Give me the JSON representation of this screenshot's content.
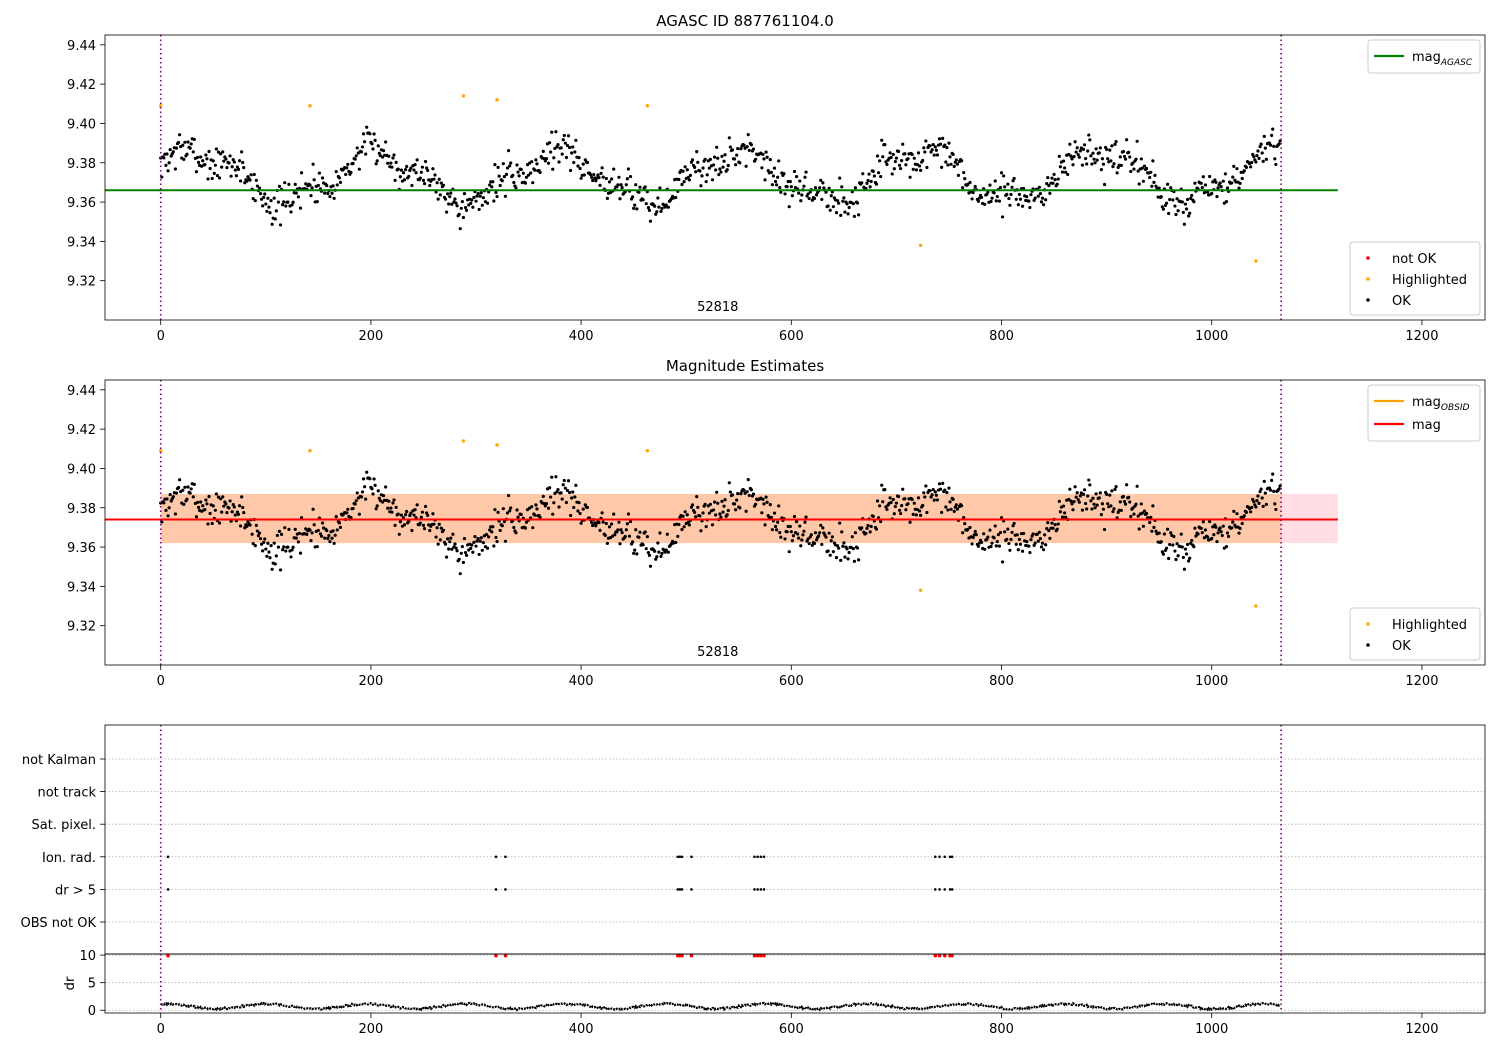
{
  "chart_data": [
    {
      "type": "scatter",
      "title": "AGASC ID 887761104.0",
      "annotation": "52818",
      "xlim": [
        -53,
        1260
      ],
      "ylim": [
        9.3,
        9.445
      ],
      "xticks": [
        0,
        200,
        400,
        600,
        800,
        1000,
        1200
      ],
      "yticks": [
        9.32,
        9.34,
        9.36,
        9.38,
        9.4,
        9.42,
        9.44
      ],
      "grid": false,
      "vlines": [
        0,
        1066
      ],
      "hlines": [
        {
          "name": "mag",
          "sub": "AGASC",
          "y": 9.366,
          "xmax": 1120,
          "color": "#008000"
        }
      ],
      "legend_lines": [
        {
          "name": "mag",
          "sub": "AGASC",
          "color": "#008000"
        }
      ],
      "legend_points": [
        {
          "name": "not OK",
          "color": "#ff0000"
        },
        {
          "name": "Highlighted",
          "color": "#ffa500"
        },
        {
          "name": "OK",
          "color": "#000000"
        }
      ],
      "series": [
        {
          "name": "Highlighted",
          "color": "#ffa500",
          "points": [
            [
              0,
              9.409
            ],
            [
              142,
              9.409
            ],
            [
              288,
              9.414
            ],
            [
              320,
              9.412
            ],
            [
              463,
              9.409
            ],
            [
              723,
              9.338
            ],
            [
              1042,
              9.33
            ]
          ]
        },
        {
          "name": "OK",
          "color": "#000000",
          "n_points": 1066,
          "seed": 7
        }
      ]
    },
    {
      "type": "scatter",
      "title": "Magnitude Estimates",
      "annotation": "52818",
      "xlim": [
        -53,
        1260
      ],
      "ylim": [
        9.3,
        9.445
      ],
      "xticks": [
        0,
        200,
        400,
        600,
        800,
        1000,
        1200
      ],
      "yticks": [
        9.32,
        9.34,
        9.36,
        9.38,
        9.4,
        9.42,
        9.44
      ],
      "grid": false,
      "vlines": [
        0,
        1066
      ],
      "bands": [
        {
          "x": [
            0,
            1066
          ],
          "y": [
            9.362,
            9.387
          ],
          "color": "#ffc8a8"
        },
        {
          "x": [
            1066,
            1120
          ],
          "y": [
            9.362,
            9.387
          ],
          "color": "#ffdde3"
        }
      ],
      "hlines": [
        {
          "name": "mag",
          "sub": "OBSID",
          "y": 9.374,
          "xmax": 1066,
          "color": "#ffa500"
        },
        {
          "name": "mag",
          "sub": "",
          "y": 9.374,
          "xmax": 1120,
          "color": "#ff0000"
        }
      ],
      "legend_lines": [
        {
          "name": "mag",
          "sub": "OBSID",
          "color": "#ffa500"
        },
        {
          "name": "mag",
          "sub": "",
          "color": "#ff0000"
        }
      ],
      "legend_points": [
        {
          "name": "Highlighted",
          "color": "#ffa500"
        },
        {
          "name": "OK",
          "color": "#000000"
        }
      ],
      "series": [
        {
          "name": "Highlighted",
          "color": "#ffa500",
          "points": [
            [
              0,
              9.409
            ],
            [
              142,
              9.409
            ],
            [
              288,
              9.414
            ],
            [
              320,
              9.412
            ],
            [
              463,
              9.409
            ],
            [
              723,
              9.338
            ],
            [
              1042,
              9.33
            ]
          ]
        },
        {
          "name": "OK",
          "color": "#000000",
          "n_points": 1066,
          "seed": 7
        }
      ]
    },
    {
      "type": "scatter",
      "xlim": [
        -53,
        1260
      ],
      "categories": [
        "not Kalman",
        "not track",
        "Sat. pixel.",
        "Ion. rad.",
        "dr > 5",
        "OBS not OK"
      ],
      "vlines": [
        0,
        1066
      ],
      "grid": true,
      "flags": {
        "Ion. rad.": [
          7,
          319,
          328,
          492,
          494,
          496,
          505,
          565,
          568,
          571,
          574,
          737,
          741,
          746,
          751,
          753
        ],
        "dr > 5": [
          7,
          319,
          328,
          492,
          494,
          496,
          505,
          565,
          568,
          571,
          574,
          737,
          741,
          746,
          751,
          753
        ]
      }
    },
    {
      "type": "scatter",
      "ylabel": "dr",
      "xlim": [
        -53,
        1260
      ],
      "ylim": [
        -0.5,
        10.2
      ],
      "xticks": [
        0,
        200,
        400,
        600,
        800,
        1000,
        1200
      ],
      "yticks": [
        0,
        5,
        10
      ],
      "grid": true,
      "vlines": [
        0,
        1066
      ],
      "n_points": 1066,
      "high_dr": {
        "value": 9.9,
        "x": [
          7,
          319,
          328,
          492,
          494,
          496,
          505,
          565,
          568,
          571,
          574,
          737,
          741,
          746,
          751,
          753
        ],
        "color": "#ff0000"
      }
    }
  ]
}
